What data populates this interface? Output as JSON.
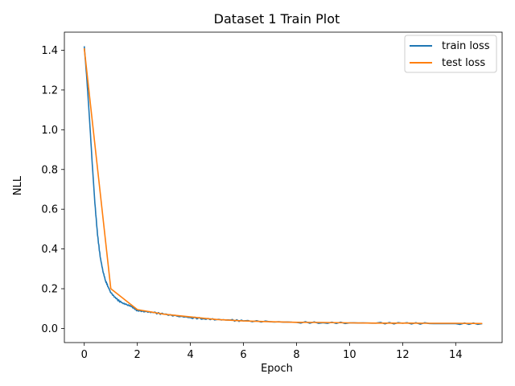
{
  "chart_data": {
    "type": "line",
    "title": "Dataset 1 Train Plot",
    "xlabel": "Epoch",
    "ylabel": "NLL",
    "xlim": [
      -0.75,
      15.75
    ],
    "ylim": [
      -0.071,
      1.491
    ],
    "xticks": [
      0,
      2,
      4,
      6,
      8,
      10,
      12,
      14
    ],
    "yticks": [
      0.0,
      0.2,
      0.4,
      0.6,
      0.8,
      1.0,
      1.2,
      1.4
    ],
    "ytick_labels": [
      "0.0",
      "0.2",
      "0.4",
      "0.6",
      "0.8",
      "1.0",
      "1.2",
      "1.4"
    ],
    "grid": false,
    "legend": "top-right",
    "series": [
      {
        "name": "train loss",
        "color": "#1f77b4",
        "x": [
          0,
          0.1,
          0.2,
          0.3,
          0.4,
          0.5,
          0.6,
          0.7,
          0.8,
          0.9,
          1.0,
          1.2,
          1.4,
          1.6,
          1.8,
          2.0,
          2.3,
          2.6,
          3.0,
          3.5,
          4.0,
          4.5,
          5.0,
          5.5,
          6.0,
          7.0,
          8.0,
          9.0,
          10.0,
          11.0,
          12.0,
          13.0,
          14.0,
          15.0
        ],
        "y": [
          1.42,
          1.25,
          1.05,
          0.83,
          0.63,
          0.47,
          0.36,
          0.29,
          0.24,
          0.21,
          0.18,
          0.15,
          0.13,
          0.12,
          0.11,
          0.09,
          0.085,
          0.08,
          0.072,
          0.062,
          0.055,
          0.049,
          0.045,
          0.042,
          0.038,
          0.034,
          0.031,
          0.029,
          0.028,
          0.027,
          0.026,
          0.025,
          0.024,
          0.024
        ]
      },
      {
        "name": "test loss",
        "color": "#ff7f0e",
        "x": [
          0,
          1,
          2,
          3,
          4,
          5,
          6,
          7,
          8,
          9,
          10,
          11,
          12,
          13,
          14,
          15
        ],
        "y": [
          1.41,
          0.2,
          0.095,
          0.072,
          0.058,
          0.045,
          0.038,
          0.034,
          0.031,
          0.03,
          0.028,
          0.027,
          0.027,
          0.026,
          0.026,
          0.025
        ]
      }
    ]
  }
}
